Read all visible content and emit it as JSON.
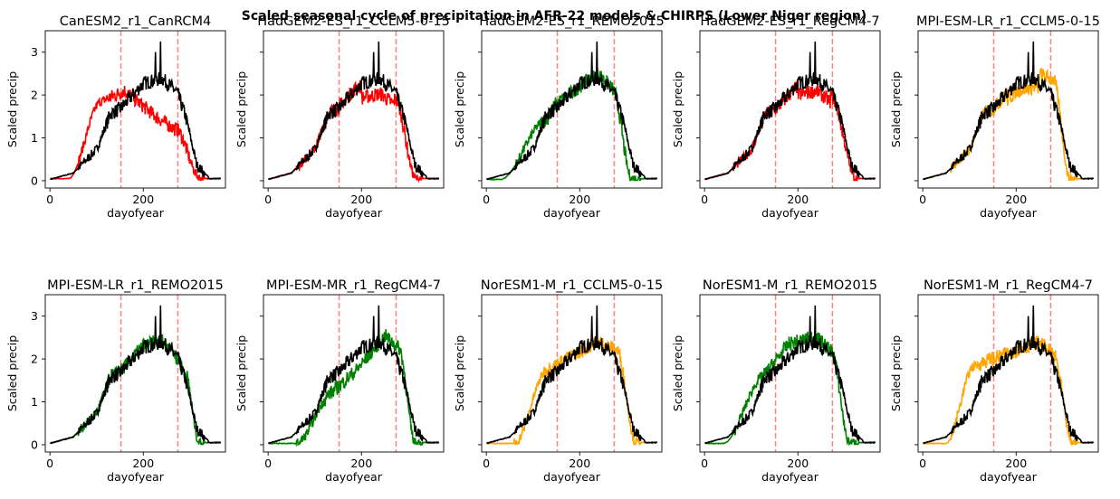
{
  "figure": {
    "suptitle": "Scaled seasonal cycle of precipitation in AFR-22 models & CHIRPS (Lower Niger region)"
  },
  "colors": {
    "red": "#ff0000",
    "green": "#008000",
    "orange": "#ffa500",
    "obs": "#000000",
    "vline": "#ff8080"
  },
  "chart_data": [
    {
      "type": "line",
      "title": "CanESM2_r1_CanRCM4",
      "xlabel": "dayofyear",
      "ylabel": "Scaled precip",
      "xlim": [
        -10,
        376
      ],
      "ylim": [
        -0.17,
        3.5
      ],
      "xticks": [
        0,
        200
      ],
      "yticks": [
        0,
        1,
        2,
        3
      ],
      "vlines": [
        152,
        274
      ],
      "model_color": "red",
      "model_shape": "canrcm4",
      "series": [
        {
          "name": "CanESM2_r1_CanRCM4"
        },
        {
          "name": "CHIRPS"
        }
      ]
    },
    {
      "type": "line",
      "title": "HadGEM2-ES_r1_CCLM5-0-15",
      "xlabel": "dayofyear",
      "ylabel": "Scaled precip",
      "xlim": [
        -10,
        376
      ],
      "ylim": [
        -0.17,
        3.5
      ],
      "xticks": [
        0,
        200
      ],
      "yticks": [
        0,
        1,
        2,
        3
      ],
      "vlines": [
        152,
        274
      ],
      "model_color": "red",
      "model_shape": "had_cclm",
      "series": [
        {
          "name": "HadGEM2-ES_r1_CCLM5-0-15"
        },
        {
          "name": "CHIRPS"
        }
      ]
    },
    {
      "type": "line",
      "title": "HadGEM2-ES_r1_REMO2015",
      "xlabel": "dayofyear",
      "ylabel": "Scaled precip",
      "xlim": [
        -10,
        376
      ],
      "ylim": [
        -0.17,
        3.5
      ],
      "xticks": [
        0,
        200
      ],
      "yticks": [
        0,
        1,
        2,
        3
      ],
      "vlines": [
        152,
        274
      ],
      "model_color": "green",
      "model_shape": "had_remo",
      "series": [
        {
          "name": "HadGEM2-ES_r1_REMO2015"
        },
        {
          "name": "CHIRPS"
        }
      ]
    },
    {
      "type": "line",
      "title": "HadGEM2-ES_r1_RegCM4-7",
      "xlabel": "dayofyear",
      "ylabel": "Scaled precip",
      "xlim": [
        -10,
        376
      ],
      "ylim": [
        -0.17,
        3.5
      ],
      "xticks": [
        0,
        200
      ],
      "yticks": [
        0,
        1,
        2,
        3
      ],
      "vlines": [
        152,
        274
      ],
      "model_color": "red",
      "model_shape": "had_regcm",
      "series": [
        {
          "name": "HadGEM2-ES_r1_RegCM4-7"
        },
        {
          "name": "CHIRPS"
        }
      ]
    },
    {
      "type": "line",
      "title": "MPI-ESM-LR_r1_CCLM5-0-15",
      "xlabel": "dayofyear",
      "ylabel": "Scaled precip",
      "xlim": [
        -10,
        376
      ],
      "ylim": [
        -0.17,
        3.5
      ],
      "xticks": [
        0,
        200
      ],
      "yticks": [
        0,
        1,
        2,
        3
      ],
      "vlines": [
        152,
        274
      ],
      "model_color": "orange",
      "model_shape": "mpilr_cclm",
      "series": [
        {
          "name": "MPI-ESM-LR_r1_CCLM5-0-15"
        },
        {
          "name": "CHIRPS"
        }
      ]
    },
    {
      "type": "line",
      "title": "MPI-ESM-LR_r1_REMO2015",
      "xlabel": "dayofyear",
      "ylabel": "Scaled precip",
      "xlim": [
        -10,
        376
      ],
      "ylim": [
        -0.17,
        3.5
      ],
      "xticks": [
        0,
        200
      ],
      "yticks": [
        0,
        1,
        2,
        3
      ],
      "vlines": [
        152,
        274
      ],
      "model_color": "green",
      "model_shape": "mpilr_remo",
      "series": [
        {
          "name": "MPI-ESM-LR_r1_REMO2015"
        },
        {
          "name": "CHIRPS"
        }
      ]
    },
    {
      "type": "line",
      "title": "MPI-ESM-MR_r1_RegCM4-7",
      "xlabel": "dayofyear",
      "ylabel": "Scaled precip",
      "xlim": [
        -10,
        376
      ],
      "ylim": [
        -0.17,
        3.5
      ],
      "xticks": [
        0,
        200
      ],
      "yticks": [
        0,
        1,
        2,
        3
      ],
      "vlines": [
        152,
        274
      ],
      "model_color": "green",
      "model_shape": "mpimr_regcm",
      "series": [
        {
          "name": "MPI-ESM-MR_r1_RegCM4-7"
        },
        {
          "name": "CHIRPS"
        }
      ]
    },
    {
      "type": "line",
      "title": "NorESM1-M_r1_CCLM5-0-15",
      "xlabel": "dayofyear",
      "ylabel": "Scaled precip",
      "xlim": [
        -10,
        376
      ],
      "ylim": [
        -0.17,
        3.5
      ],
      "xticks": [
        0,
        200
      ],
      "yticks": [
        0,
        1,
        2,
        3
      ],
      "vlines": [
        152,
        274
      ],
      "model_color": "orange",
      "model_shape": "nor_cclm",
      "series": [
        {
          "name": "NorESM1-M_r1_CCLM5-0-15"
        },
        {
          "name": "CHIRPS"
        }
      ]
    },
    {
      "type": "line",
      "title": "NorESM1-M_r1_REMO2015",
      "xlabel": "dayofyear",
      "ylabel": "Scaled precip",
      "xlim": [
        -10,
        376
      ],
      "ylim": [
        -0.17,
        3.5
      ],
      "xticks": [
        0,
        200
      ],
      "yticks": [
        0,
        1,
        2,
        3
      ],
      "vlines": [
        152,
        274
      ],
      "model_color": "green",
      "model_shape": "nor_remo",
      "series": [
        {
          "name": "NorESM1-M_r1_REMO2015"
        },
        {
          "name": "CHIRPS"
        }
      ]
    },
    {
      "type": "line",
      "title": "NorESM1-M_r1_RegCM4-7",
      "xlabel": "dayofyear",
      "ylabel": "Scaled precip",
      "xlim": [
        -10,
        376
      ],
      "ylim": [
        -0.17,
        3.5
      ],
      "xticks": [
        0,
        200
      ],
      "yticks": [
        0,
        1,
        2,
        3
      ],
      "vlines": [
        152,
        274
      ],
      "model_color": "orange",
      "model_shape": "nor_regcm",
      "series": [
        {
          "name": "NorESM1-M_r1_RegCM4-7"
        },
        {
          "name": "CHIRPS"
        }
      ]
    }
  ]
}
